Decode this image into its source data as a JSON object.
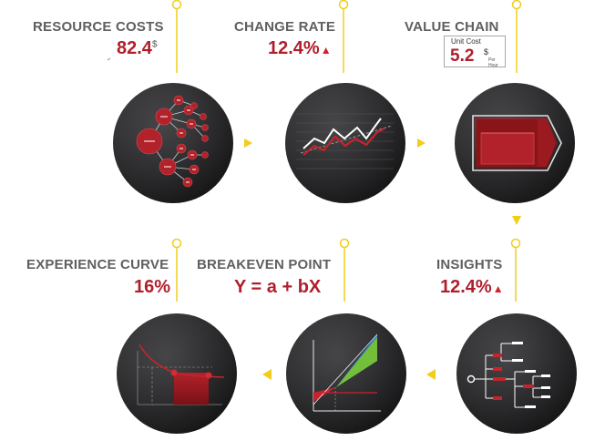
{
  "nodes": [
    {
      "title": "RESOURCE COSTS",
      "value": "82.4",
      "unit": "$"
    },
    {
      "title": "CHANGE RATE",
      "value": "12.4%",
      "indicator": "up-triangle"
    },
    {
      "title": "VALUE CHAIN",
      "box": {
        "label": "Unit Cost",
        "value": "5.2",
        "unit": "$",
        "sub": "Per Hour"
      }
    },
    {
      "title": "INSIGHTS",
      "value": "12.4%",
      "indicator": "up-triangle"
    },
    {
      "title": "BREAKEVEN POINT",
      "value": "Y = a + bX"
    },
    {
      "title": "EXPERIENCE CURVE",
      "value": "16%"
    }
  ],
  "colors": {
    "accent": "#b01e2b",
    "connector": "#f2cd1b",
    "disk": "#1e1e20",
    "title": "#5f5f62"
  },
  "icons": [
    "tree-diagram-icon",
    "line-chart-icon",
    "value-chain-icon",
    "decision-tree-icon",
    "breakeven-chart-icon",
    "experience-curve-icon"
  ]
}
